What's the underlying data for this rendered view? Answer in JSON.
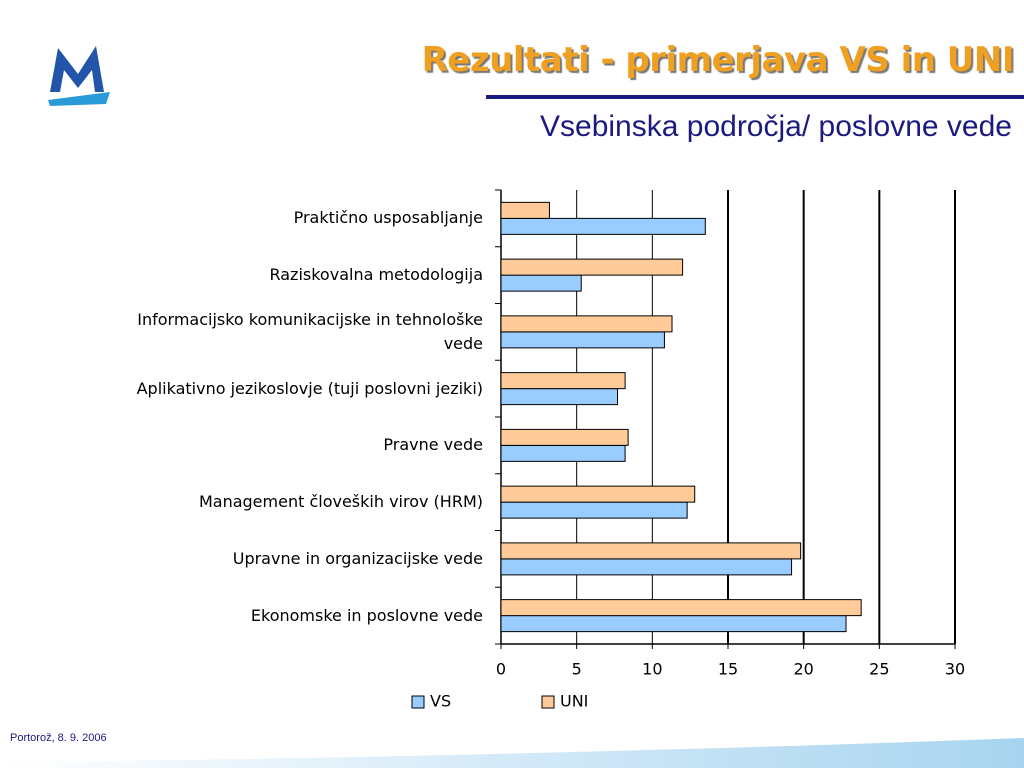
{
  "title": "Rezultati - primerjava VS in UNI",
  "footer": "Portorož, 8. 9. 2006",
  "chart_data": {
    "type": "hbar",
    "title": "Vsebinska področja/ poslovne vede",
    "categories": [
      "Praktično usposabljanje",
      "Raziskovalna metodologija",
      "Informacijsko komunikacijske in tehnološke vede",
      "Aplikativno jezikoslovje (tuji poslovni jeziki)",
      "Pravne vede",
      "Management človeških virov (HRM)",
      "Upravne in organizacijske vede",
      "Ekonomske in poslovne vede"
    ],
    "series": [
      {
        "name": "VS",
        "color": "#99ccff",
        "values": [
          13.5,
          5.3,
          10.8,
          7.7,
          8.2,
          12.3,
          19.2,
          22.8
        ]
      },
      {
        "name": "UNI",
        "color": "#ffcc99",
        "values": [
          3.2,
          12,
          11.3,
          8.2,
          8.4,
          12.8,
          19.8,
          23.8
        ]
      }
    ],
    "xlim": [
      0,
      30
    ],
    "xticks": [
      0,
      5,
      10,
      15,
      20,
      25,
      30
    ],
    "grid": true,
    "legend": "bottom"
  }
}
